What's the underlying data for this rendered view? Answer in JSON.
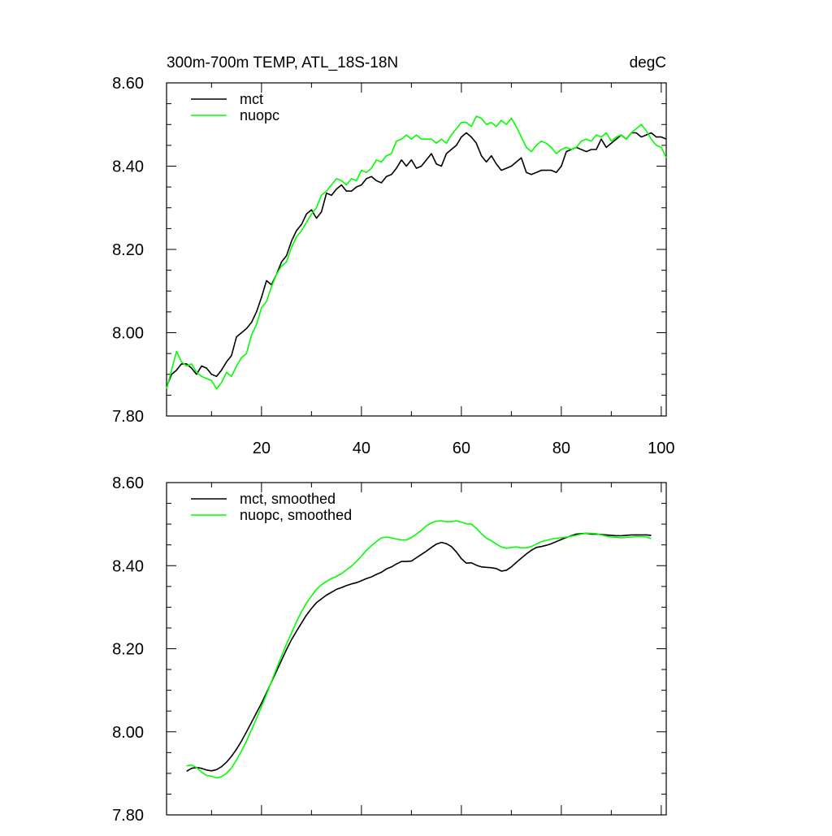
{
  "chart_data": [
    {
      "type": "line",
      "title": "300m-700m TEMP, ATL_18S-18N",
      "units_label": "degC",
      "xlim": [
        1,
        101
      ],
      "ylim": [
        7.8,
        8.6
      ],
      "x_ticks": [
        20,
        40,
        60,
        80,
        100
      ],
      "x_tick_labels": [
        "20",
        "40",
        "60",
        "80",
        "100"
      ],
      "y_ticks": [
        7.8,
        8.0,
        8.2,
        8.4,
        8.6
      ],
      "y_tick_labels": [
        "7.80",
        "8.00",
        "8.20",
        "8.40",
        "8.60"
      ],
      "legend_position": "top-left",
      "grid": false,
      "x": [
        1,
        2,
        3,
        4,
        5,
        6,
        7,
        8,
        9,
        10,
        11,
        12,
        13,
        14,
        15,
        16,
        17,
        18,
        19,
        20,
        21,
        22,
        23,
        24,
        25,
        26,
        27,
        28,
        29,
        30,
        31,
        32,
        33,
        34,
        35,
        36,
        37,
        38,
        39,
        40,
        41,
        42,
        43,
        44,
        45,
        46,
        47,
        48,
        49,
        50,
        51,
        52,
        53,
        54,
        55,
        56,
        57,
        58,
        59,
        60,
        61,
        62,
        63,
        64,
        65,
        66,
        67,
        68,
        69,
        70,
        71,
        72,
        73,
        74,
        75,
        76,
        77,
        78,
        79,
        80,
        81,
        82,
        83,
        84,
        85,
        86,
        87,
        88,
        89,
        90,
        91,
        92,
        93,
        94,
        95,
        96,
        97,
        98,
        99,
        100,
        101
      ],
      "series": [
        {
          "name": "mct",
          "color": "#000000",
          "values": [
            7.87,
            7.9,
            7.91,
            7.925,
            7.925,
            7.915,
            7.9,
            7.92,
            7.915,
            7.9,
            7.895,
            7.91,
            7.93,
            7.945,
            7.99,
            8.0,
            8.01,
            8.025,
            8.05,
            8.085,
            8.125,
            8.115,
            8.14,
            8.17,
            8.185,
            8.22,
            8.245,
            8.26,
            8.285,
            8.295,
            8.275,
            8.29,
            8.335,
            8.33,
            8.345,
            8.355,
            8.34,
            8.34,
            8.35,
            8.355,
            8.37,
            8.375,
            8.365,
            8.36,
            8.375,
            8.38,
            8.395,
            8.415,
            8.4,
            8.415,
            8.395,
            8.4,
            8.415,
            8.43,
            8.405,
            8.4,
            8.43,
            8.44,
            8.45,
            8.47,
            8.48,
            8.47,
            8.455,
            8.425,
            8.41,
            8.425,
            8.405,
            8.39,
            8.395,
            8.4,
            8.41,
            8.42,
            8.385,
            8.38,
            8.385,
            8.39,
            8.39,
            8.39,
            8.385,
            8.4,
            8.435,
            8.44,
            8.445,
            8.44,
            8.435,
            8.44,
            8.44,
            8.465,
            8.445,
            8.455,
            8.465,
            8.475,
            8.465,
            8.48,
            8.48,
            8.47,
            8.475,
            8.48,
            8.47,
            8.47,
            8.465
          ]
        },
        {
          "name": "nuopc",
          "color": "#00ff00",
          "values": [
            7.865,
            7.91,
            7.955,
            7.93,
            7.92,
            7.925,
            7.905,
            7.895,
            7.89,
            7.885,
            7.865,
            7.88,
            7.905,
            7.895,
            7.92,
            7.94,
            7.95,
            7.995,
            8.02,
            8.06,
            8.075,
            8.11,
            8.14,
            8.16,
            8.17,
            8.205,
            8.23,
            8.245,
            8.265,
            8.285,
            8.3,
            8.33,
            8.34,
            8.355,
            8.37,
            8.365,
            8.355,
            8.37,
            8.365,
            8.39,
            8.385,
            8.395,
            8.415,
            8.41,
            8.425,
            8.43,
            8.46,
            8.465,
            8.475,
            8.465,
            8.475,
            8.465,
            8.465,
            8.465,
            8.455,
            8.465,
            8.455,
            8.475,
            8.49,
            8.505,
            8.505,
            8.495,
            8.52,
            8.515,
            8.5,
            8.505,
            8.495,
            8.51,
            8.5,
            8.515,
            8.495,
            8.47,
            8.445,
            8.435,
            8.45,
            8.46,
            8.455,
            8.445,
            8.43,
            8.44,
            8.445,
            8.44,
            8.445,
            8.46,
            8.465,
            8.46,
            8.475,
            8.47,
            8.48,
            8.46,
            8.47,
            8.475,
            8.465,
            8.48,
            8.49,
            8.5,
            8.485,
            8.465,
            8.45,
            8.445,
            8.42
          ]
        }
      ]
    },
    {
      "type": "line",
      "xlim": [
        1,
        101
      ],
      "ylim": [
        7.8,
        8.6
      ],
      "x_ticks": [
        20,
        40,
        60,
        80,
        100
      ],
      "y_ticks": [
        7.8,
        8.0,
        8.2,
        8.4,
        8.6
      ],
      "y_tick_labels": [
        "7.80",
        "8.00",
        "8.20",
        "8.40",
        "8.60"
      ],
      "legend_position": "top-left",
      "grid": false,
      "x": [
        5,
        6,
        7,
        8,
        9,
        10,
        11,
        12,
        13,
        14,
        15,
        16,
        17,
        18,
        19,
        20,
        21,
        22,
        23,
        24,
        25,
        26,
        27,
        28,
        29,
        30,
        31,
        32,
        33,
        34,
        35,
        36,
        37,
        38,
        39,
        40,
        41,
        42,
        43,
        44,
        45,
        46,
        47,
        48,
        49,
        50,
        51,
        52,
        53,
        54,
        55,
        56,
        57,
        58,
        59,
        60,
        61,
        62,
        63,
        64,
        65,
        66,
        67,
        68,
        69,
        70,
        71,
        72,
        73,
        74,
        75,
        76,
        77,
        78,
        79,
        80,
        81,
        82,
        83,
        84,
        85,
        86,
        87,
        88,
        89,
        90,
        91,
        92,
        93,
        94,
        95,
        96,
        97,
        98
      ],
      "series": [
        {
          "name": "mct, smoothed",
          "color": "#000000",
          "values": [
            7.905,
            7.912,
            7.914,
            7.912,
            7.908,
            7.906,
            7.909,
            7.916,
            7.927,
            7.941,
            7.958,
            7.978,
            8.0,
            8.023,
            8.046,
            8.069,
            8.094,
            8.12,
            8.146,
            8.172,
            8.198,
            8.222,
            8.242,
            8.262,
            8.281,
            8.297,
            8.311,
            8.32,
            8.329,
            8.336,
            8.343,
            8.347,
            8.352,
            8.356,
            8.359,
            8.364,
            8.369,
            8.373,
            8.379,
            8.384,
            8.392,
            8.397,
            8.404,
            8.41,
            8.41,
            8.411,
            8.419,
            8.427,
            8.435,
            8.444,
            8.452,
            8.456,
            8.453,
            8.446,
            8.433,
            8.417,
            8.406,
            8.407,
            8.401,
            8.397,
            8.396,
            8.395,
            8.393,
            8.387,
            8.389,
            8.397,
            8.408,
            8.418,
            8.428,
            8.437,
            8.444,
            8.446,
            8.449,
            8.453,
            8.458,
            8.463,
            8.468,
            8.472,
            8.476,
            8.477,
            8.478,
            8.476,
            8.476,
            8.475,
            8.474,
            8.473,
            8.472,
            8.472,
            8.473,
            8.474,
            8.474,
            8.474,
            8.474,
            8.473
          ]
        },
        {
          "name": "nuopc, smoothed",
          "color": "#00ff00",
          "values": [
            7.918,
            7.92,
            7.914,
            7.903,
            7.895,
            7.893,
            7.889,
            7.892,
            7.9,
            7.913,
            7.932,
            7.954,
            7.978,
            8.005,
            8.032,
            8.061,
            8.09,
            8.121,
            8.152,
            8.182,
            8.211,
            8.238,
            8.265,
            8.289,
            8.31,
            8.327,
            8.343,
            8.354,
            8.362,
            8.369,
            8.374,
            8.381,
            8.39,
            8.399,
            8.41,
            8.423,
            8.437,
            8.448,
            8.458,
            8.467,
            8.469,
            8.467,
            8.464,
            8.462,
            8.462,
            8.468,
            8.476,
            8.485,
            8.496,
            8.503,
            8.507,
            8.508,
            8.506,
            8.506,
            8.508,
            8.505,
            8.501,
            8.5,
            8.49,
            8.477,
            8.466,
            8.46,
            8.452,
            8.445,
            8.442,
            8.444,
            8.445,
            8.443,
            8.443,
            8.446,
            8.452,
            8.458,
            8.461,
            8.464,
            8.466,
            8.467,
            8.469,
            8.471,
            8.473,
            8.476,
            8.478,
            8.478,
            8.477,
            8.474,
            8.471,
            8.469,
            8.468,
            8.467,
            8.468,
            8.469,
            8.47,
            8.47,
            8.469,
            8.465
          ]
        }
      ]
    }
  ]
}
